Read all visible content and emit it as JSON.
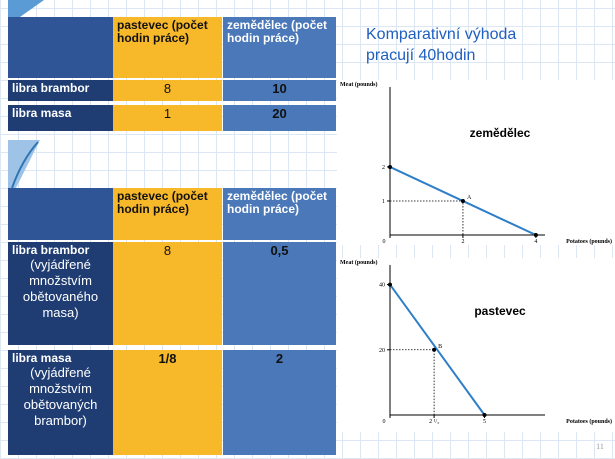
{
  "title": {
    "lines": [
      "Komparativní výhoda",
      "pracují 40hodin"
    ]
  },
  "table1": {
    "columns": [
      "pastevec (počet hodin práce)",
      "zemědělec (počet hodin práce)"
    ],
    "rows": [
      {
        "label": "libra brambor",
        "values": [
          8,
          10
        ]
      },
      {
        "label": "libra masa",
        "values": [
          1,
          20
        ]
      }
    ]
  },
  "table2": {
    "columns": [
      "pastevec (počet hodin práce)",
      "zemědělec (počet hodin práce)"
    ],
    "rows": [
      {
        "label": "libra brambor",
        "note": "(vyjádřené množstvím obětovaného masa)",
        "values": [
          8,
          "0,5"
        ]
      },
      {
        "label": "libra masa",
        "note": "(vyjádřené množstvím obětovaných brambor)",
        "values": [
          "1/8",
          2
        ]
      }
    ]
  },
  "charts": [
    {
      "type": "line",
      "title": "zemědělec",
      "y_label": "Meat (pounds)",
      "x_label": "Potatoes (pounds)",
      "x": [
        0,
        4
      ],
      "values": [
        2,
        0
      ],
      "color": "#2f7fc8",
      "xlim": [
        0,
        4.25
      ],
      "ylim": [
        0,
        4.35
      ],
      "xticks": [
        0,
        2,
        4
      ],
      "yticks": [
        1,
        2
      ],
      "point": {
        "label": "A",
        "x": 2,
        "y": 1
      }
    },
    {
      "type": "line",
      "title": "pastevec",
      "y_label": "Meat (pounds)",
      "x_label": "Potatoes (pounds)",
      "x": [
        0,
        5
      ],
      "values": [
        40,
        0
      ],
      "color": "#2f7fc8",
      "xlim": [
        0,
        8.2
      ],
      "ylim": [
        0,
        46
      ],
      "xticks": [
        0,
        {
          "value": 2.3333,
          "label": "2 ¹/₃"
        },
        5
      ],
      "yticks": [
        20,
        40
      ],
      "point": {
        "label": "B",
        "x": 2.3333,
        "y": 20
      }
    }
  ],
  "page_number": "11"
}
